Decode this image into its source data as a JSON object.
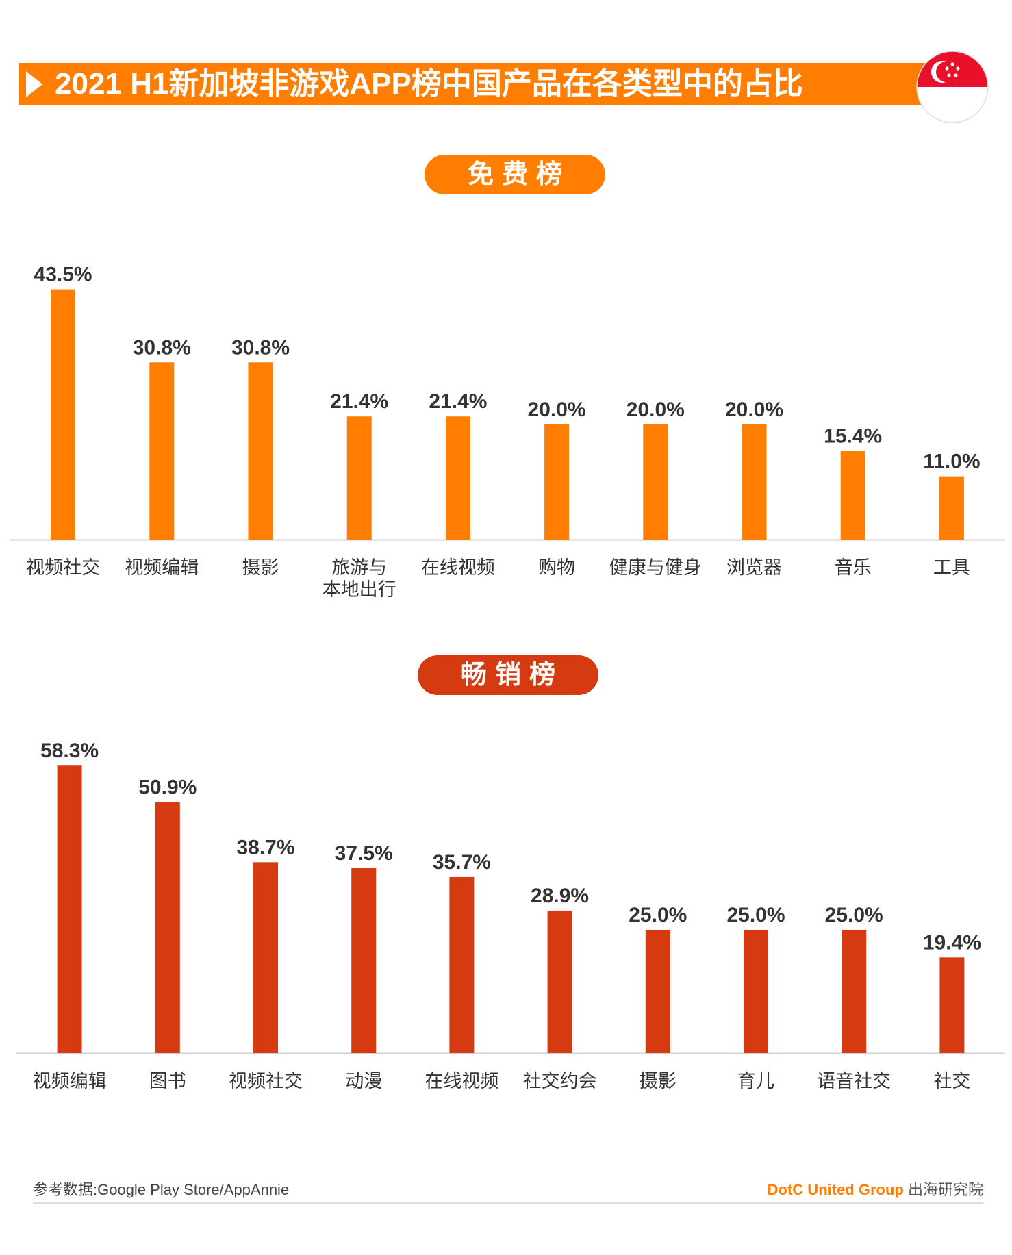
{
  "title": "2021 H1新加坡非游戏APP榜中国产品在各类型中的占比",
  "sections": {
    "free_label": "免费榜",
    "grossing_label": "畅销榜"
  },
  "colors": {
    "title_bar": "#ff7d00",
    "free_bars": "#ff7d00",
    "grossing_bars": "#d63a10",
    "flag_red": "#e8102b"
  },
  "chart_data": [
    {
      "type": "bar",
      "name": "免费榜",
      "categories": [
        "视频社交",
        "视频编辑",
        "摄影",
        "旅游与\n本地出行",
        "在线视频",
        "购物",
        "健康与健身",
        "浏览器",
        "音乐",
        "工具"
      ],
      "values": [
        43.5,
        30.8,
        30.8,
        21.4,
        21.4,
        20.0,
        20.0,
        20.0,
        15.4,
        11.0
      ],
      "data_labels": [
        "43.5%",
        "30.8%",
        "30.8%",
        "21.4%",
        "21.4%",
        "20.0%",
        "20.0%",
        "20.0%",
        "15.4%",
        "11.0%"
      ],
      "unit": "%",
      "ylim": [
        0,
        50
      ],
      "grid": false
    },
    {
      "type": "bar",
      "name": "畅销榜",
      "categories": [
        "视频编辑",
        "图书",
        "视频社交",
        "动漫",
        "在线视频",
        "社交约会",
        "摄影",
        "育儿",
        "语音社交",
        "社交"
      ],
      "values": [
        58.3,
        50.9,
        38.7,
        37.5,
        35.7,
        28.9,
        25.0,
        25.0,
        25.0,
        19.4
      ],
      "data_labels": [
        "58.3%",
        "50.9%",
        "38.7%",
        "37.5%",
        "35.7%",
        "28.9%",
        "25.0%",
        "25.0%",
        "25.0%",
        "19.4%"
      ],
      "unit": "%",
      "ylim": [
        0,
        65
      ],
      "grid": false
    }
  ],
  "footer": {
    "source": "参考数据:Google Play Store/AppAnnie",
    "brand_en": "DotC United Group",
    "brand_cn": "出海研究院"
  }
}
